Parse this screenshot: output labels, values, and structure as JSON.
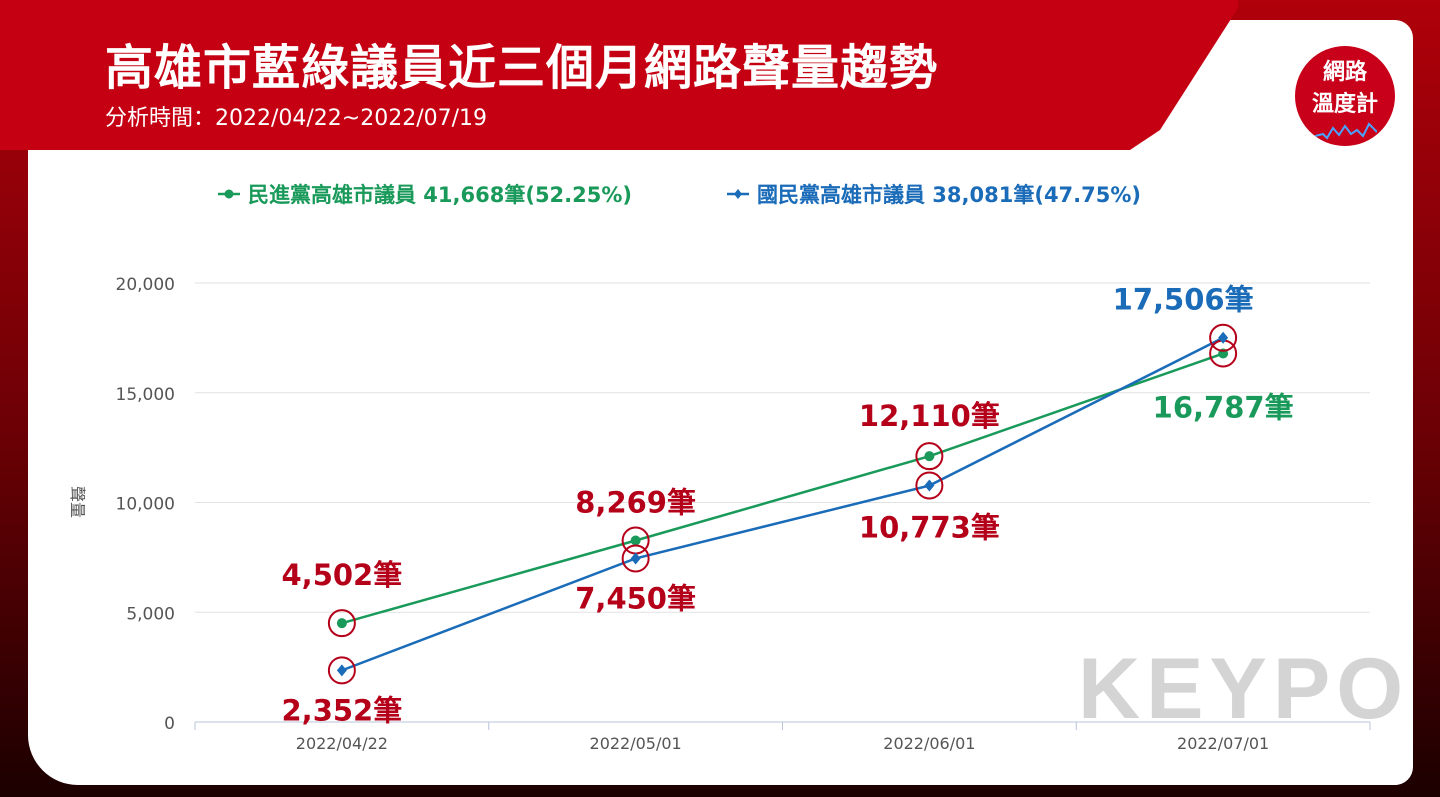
{
  "header": {
    "title": "高雄市藍綠議員近三個月網路聲量趨勢",
    "subtitle": "分析時間：2022/04/22~2022/07/19",
    "logo_line1": "網路",
    "logo_line2": "溫度計"
  },
  "watermark": "KEYPO",
  "colors": {
    "header_bg": "#c40012",
    "green": "#1a9a5a",
    "blue": "#1a6bb8",
    "annotation_red": "#b5001a"
  },
  "chart_data": {
    "type": "line",
    "title": "",
    "xlabel": "",
    "ylabel": "聲量",
    "categories": [
      "2022/04/22",
      "2022/05/01",
      "2022/06/01",
      "2022/07/01"
    ],
    "ylim": [
      0,
      20000
    ],
    "yticks": [
      "0",
      "5,000",
      "10,000",
      "15,000",
      "20,000"
    ],
    "yticks_values": [
      0,
      5000,
      10000,
      15000,
      20000
    ],
    "legend_position": "top",
    "grid": true,
    "series": [
      {
        "name": "民進黨高雄市議員 41,668筆(52.25%)",
        "color": "#1a9a5a",
        "marker": "circle",
        "values": [
          4502,
          8269,
          12110,
          16787
        ],
        "labels": [
          "4,502筆",
          "8,269筆",
          "12,110筆",
          "16,787筆"
        ]
      },
      {
        "name": "國民黨高雄市議員 38,081筆(47.75%)",
        "color": "#1a6bb8",
        "marker": "diamond",
        "values": [
          2352,
          7450,
          10773,
          17506
        ],
        "labels": [
          "2,352筆",
          "7,450筆",
          "10,773筆",
          "17,506筆"
        ]
      }
    ]
  }
}
